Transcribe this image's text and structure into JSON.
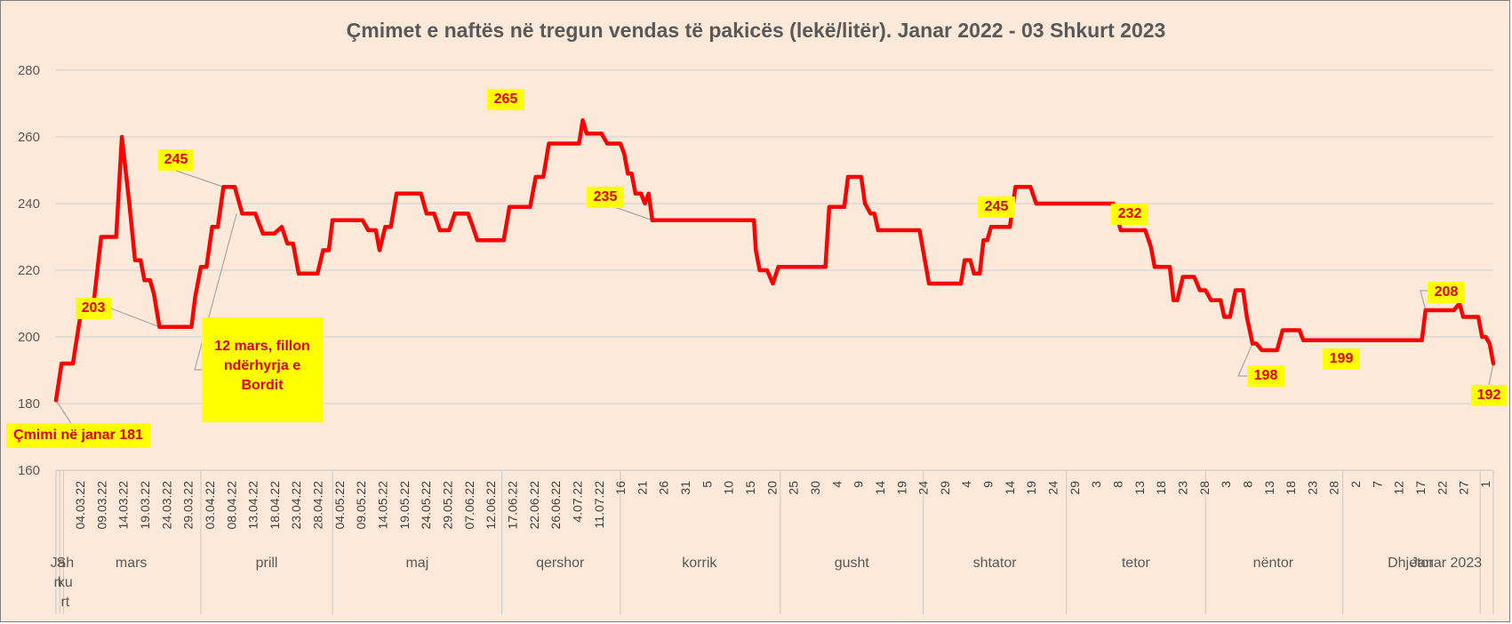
{
  "chart_data": {
    "type": "line",
    "title": "Çmimet e naftës në tregun vendas të pakicës (lekë/litër). Janar 2022 - 03 Shkurt 2023",
    "xlabel": "",
    "ylabel": "",
    "ylim": [
      160,
      280
    ],
    "yticks": [
      "160",
      "180",
      "200",
      "220",
      "240",
      "260",
      "280"
    ],
    "grid": true,
    "legend": "none",
    "line_color": "#ff0000",
    "callout_color": "#ffff00",
    "label_color": "#e00000",
    "months": [
      "Jan",
      "Shkurt",
      "mars",
      "prill",
      "maj",
      "qershor",
      "korrik",
      "gusht",
      "shtator",
      "tetor",
      "nëntor",
      "Dhjetor",
      "Janar 2023"
    ],
    "month_rows": {
      "Jan": [
        "Ja",
        "n"
      ],
      "Shkurt": [
        "Sh",
        "ku",
        "rt"
      ]
    },
    "day_labels": [
      "04.03.22",
      "09.03.22",
      "14.03.22",
      "19.03.22",
      "24.03.22",
      "29.03.22",
      "03.04.22",
      "08.04.22",
      "13.04.22",
      "18.04.22",
      "23.04.22",
      "28.04.22",
      "04.05.22",
      "09.05.22",
      "14.05.22",
      "19.05.22",
      "24.05.22",
      "29.05.22",
      "07.06.22",
      "12.06.22",
      "17.06.22",
      "22.06.22",
      "26.06.22",
      "4.07.22",
      "11.07.22",
      "16",
      "21",
      "26",
      "31",
      "5",
      "10",
      "15",
      "20",
      "25",
      "30",
      "4",
      "9",
      "14",
      "19",
      "24",
      "29",
      "4",
      "9",
      "14",
      "19",
      "24",
      "29",
      "3",
      "8",
      "13",
      "18",
      "23",
      "28",
      "3",
      "8",
      "13",
      "18",
      "23",
      "28",
      "2",
      "7",
      "12",
      "17",
      "22",
      "27",
      "1"
    ],
    "series": [
      {
        "points": [
          [
            0,
            181
          ],
          [
            3,
            192
          ],
          [
            9,
            192
          ],
          [
            14,
            210
          ],
          [
            20,
            210
          ],
          [
            24,
            230
          ],
          [
            28,
            230
          ],
          [
            32,
            230
          ],
          [
            35,
            260
          ],
          [
            37,
            250
          ],
          [
            39,
            240
          ],
          [
            42,
            223
          ],
          [
            45,
            223
          ],
          [
            47,
            217
          ],
          [
            50,
            217
          ],
          [
            52,
            213
          ],
          [
            55,
            203
          ],
          [
            63,
            203
          ],
          [
            72,
            203
          ],
          [
            74,
            212
          ],
          [
            77,
            221
          ],
          [
            80,
            221
          ],
          [
            83,
            233
          ],
          [
            86,
            233
          ],
          [
            89,
            245
          ],
          [
            95,
            245
          ],
          [
            99,
            237
          ],
          [
            106,
            237
          ],
          [
            110,
            231
          ],
          [
            116,
            231
          ],
          [
            120,
            233
          ],
          [
            123,
            228
          ],
          [
            126,
            228
          ],
          [
            129,
            219
          ],
          [
            135,
            219
          ],
          [
            139,
            219
          ],
          [
            142,
            226
          ],
          [
            145,
            226
          ],
          [
            147,
            235
          ],
          [
            150,
            235
          ],
          [
            155,
            235
          ],
          [
            163,
            235
          ],
          [
            166,
            232
          ],
          [
            170,
            232
          ],
          [
            172,
            226
          ],
          [
            175,
            233
          ],
          [
            178,
            233
          ],
          [
            181,
            243
          ],
          [
            185,
            243
          ],
          [
            194,
            243
          ],
          [
            197,
            237
          ],
          [
            201,
            237
          ],
          [
            204,
            232
          ],
          [
            209,
            232
          ],
          [
            212,
            237
          ],
          [
            219,
            237
          ],
          [
            221,
            234
          ],
          [
            224,
            229
          ],
          [
            233,
            229
          ],
          [
            238,
            229
          ],
          [
            241,
            239
          ],
          [
            248,
            239
          ],
          [
            252,
            239
          ],
          [
            255,
            248
          ],
          [
            259,
            248
          ],
          [
            262,
            258
          ],
          [
            267,
            258
          ],
          [
            275,
            258
          ],
          [
            278,
            258
          ],
          [
            280,
            265
          ],
          [
            282,
            261
          ],
          [
            287,
            261
          ],
          [
            290,
            261
          ],
          [
            293,
            258
          ],
          [
            300,
            258
          ],
          [
            302,
            255
          ],
          [
            304,
            249
          ],
          [
            306,
            249
          ],
          [
            308,
            243
          ],
          [
            311,
            243
          ],
          [
            313,
            240
          ],
          [
            315,
            243
          ],
          [
            317,
            235
          ],
          [
            323,
            235
          ],
          [
            337,
            235
          ],
          [
            352,
            235
          ],
          [
            371,
            235
          ],
          [
            372,
            226
          ],
          [
            374,
            220
          ],
          [
            378,
            220
          ],
          [
            381,
            216
          ],
          [
            384,
            221
          ],
          [
            388,
            221
          ],
          [
            392,
            221
          ],
          [
            400,
            221
          ],
          [
            409,
            221
          ],
          [
            411,
            239
          ],
          [
            419,
            239
          ],
          [
            421,
            248
          ],
          [
            428,
            248
          ],
          [
            430,
            240
          ],
          [
            433,
            237
          ],
          [
            435,
            237
          ],
          [
            437,
            232
          ],
          [
            441,
            232
          ],
          [
            447,
            232
          ],
          [
            455,
            232
          ],
          [
            459,
            232
          ],
          [
            464,
            216
          ],
          [
            469,
            216
          ],
          [
            474,
            216
          ],
          [
            481,
            216
          ],
          [
            483,
            223
          ],
          [
            486,
            223
          ],
          [
            488,
            219
          ],
          [
            491,
            219
          ],
          [
            493,
            229
          ],
          [
            495,
            229
          ],
          [
            497,
            233
          ],
          [
            502,
            233
          ],
          [
            507,
            233
          ],
          [
            510,
            245
          ],
          [
            513,
            245
          ],
          [
            518,
            245
          ],
          [
            521,
            240
          ],
          [
            525,
            240
          ],
          [
            540,
            240
          ],
          [
            555,
            240
          ],
          [
            562,
            240
          ],
          [
            566,
            232
          ],
          [
            571,
            232
          ],
          [
            576,
            232
          ],
          [
            579,
            232
          ],
          [
            582,
            227
          ],
          [
            584,
            221
          ],
          [
            589,
            221
          ],
          [
            592,
            221
          ],
          [
            594,
            211
          ],
          [
            596,
            211
          ],
          [
            599,
            218
          ],
          [
            603,
            218
          ],
          [
            605,
            218
          ],
          [
            608,
            214
          ],
          [
            611,
            214
          ],
          [
            614,
            211
          ],
          [
            619,
            211
          ],
          [
            621,
            206
          ],
          [
            624,
            206
          ],
          [
            627,
            214
          ],
          [
            630,
            214
          ],
          [
            631,
            214
          ],
          [
            633,
            206
          ],
          [
            636,
            198
          ],
          [
            638,
            198
          ],
          [
            641,
            196
          ],
          [
            643,
            196
          ],
          [
            649,
            196
          ],
          [
            652,
            202
          ],
          [
            656,
            202
          ],
          [
            659,
            202
          ],
          [
            661,
            202
          ],
          [
            663,
            199
          ],
          [
            668,
            199
          ],
          [
            679,
            199
          ],
          [
            688,
            199
          ],
          [
            697,
            199
          ],
          [
            700,
            199
          ],
          [
            702,
            199
          ],
          [
            704,
            199
          ],
          [
            707,
            199
          ],
          [
            709,
            199
          ],
          [
            711,
            199
          ],
          [
            713,
            199
          ],
          [
            715,
            199
          ],
          [
            717,
            199
          ],
          [
            720,
            199
          ],
          [
            723,
            199
          ],
          [
            726,
            199
          ],
          [
            728,
            208
          ],
          [
            732,
            208
          ],
          [
            736,
            208
          ],
          [
            738,
            208
          ],
          [
            740,
            208
          ],
          [
            743,
            208
          ],
          [
            746,
            210
          ],
          [
            748,
            206
          ],
          [
            751,
            206
          ],
          [
            754,
            206
          ],
          [
            756,
            206
          ],
          [
            758,
            200
          ],
          [
            760,
            200
          ],
          [
            762,
            198
          ],
          [
            764,
            192
          ]
        ]
      }
    ],
    "annotations": [
      {
        "text": "Çmimi në janar 181",
        "x": 0,
        "y": 181
      },
      {
        "text": "203",
        "x": 55,
        "y": 203
      },
      {
        "text": "245",
        "x": 89,
        "y": 245
      },
      {
        "text": "12 mars, fillon ndërhyrja e Bordit",
        "x": 96,
        "y": 245
      },
      {
        "text": "265",
        "x": 280,
        "y": 265
      },
      {
        "text": "235",
        "x": 317,
        "y": 235
      },
      {
        "text": "245",
        "x": 510,
        "y": 245
      },
      {
        "text": "232",
        "x": 579,
        "y": 232
      },
      {
        "text": "198",
        "x": 636,
        "y": 198
      },
      {
        "text": "199",
        "x": 688,
        "y": 199
      },
      {
        "text": "208",
        "x": 728,
        "y": 208
      },
      {
        "text": "192",
        "x": 764,
        "y": 192
      }
    ]
  }
}
